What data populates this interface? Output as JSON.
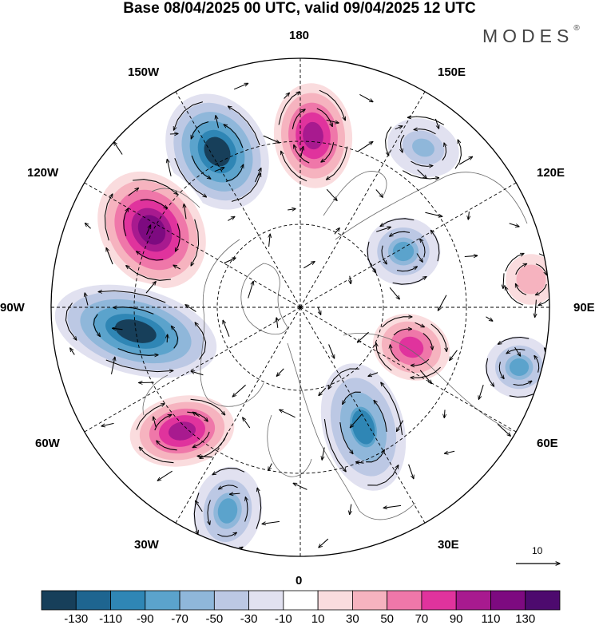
{
  "title": "Base 08/04/2025 00 UTC, valid 09/04/2025 12 UTC",
  "brand": {
    "name": "MODES",
    "mark": "®"
  },
  "longitude_labels": [
    {
      "id": "180",
      "text": "180"
    },
    {
      "id": "150E",
      "text": "150E"
    },
    {
      "id": "120E",
      "text": "120E"
    },
    {
      "id": "90E",
      "text": "90E"
    },
    {
      "id": "60E",
      "text": "60E"
    },
    {
      "id": "30E",
      "text": "30E"
    },
    {
      "id": "0",
      "text": "0"
    },
    {
      "id": "30W",
      "text": "30W"
    },
    {
      "id": "60W",
      "text": "60W"
    },
    {
      "id": "90W",
      "text": "90W"
    },
    {
      "id": "120W",
      "text": "120W"
    },
    {
      "id": "150W",
      "text": "150W"
    }
  ],
  "vector_reference": {
    "value": "10"
  },
  "colorbar": {
    "tick_labels": [
      "-130",
      "-110",
      "-90",
      "-70",
      "-50",
      "-30",
      "-10",
      "10",
      "30",
      "50",
      "70",
      "90",
      "110",
      "130"
    ],
    "colors": [
      "#173f5a",
      "#1e6590",
      "#2f86b5",
      "#5ba3cc",
      "#8fb7da",
      "#bcc8e4",
      "#e1e1f0",
      "#ffffff",
      "#fadcde",
      "#f6b3bf",
      "#ef77a9",
      "#e0339d",
      "#a81a8f",
      "#7d0a80",
      "#4d0a6e"
    ]
  },
  "field": {
    "anomalies": [
      {
        "name": "anticyclone-180",
        "value": 110
      },
      {
        "name": "cyclone-165W",
        "value": -130
      },
      {
        "name": "anticyclone-125W",
        "value": 130
      },
      {
        "name": "cyclone-80W",
        "value": -130
      },
      {
        "name": "anticyclone-55W",
        "value": 110
      },
      {
        "name": "cyclone-30W",
        "value": -70
      },
      {
        "name": "cyclone-15E",
        "value": -90
      },
      {
        "name": "anticyclone-80E",
        "value": 90
      },
      {
        "name": "cyclone-70E",
        "value": -70
      },
      {
        "name": "anticyclone-95E",
        "value": 50
      },
      {
        "name": "cyclone-140E",
        "value": -50
      },
      {
        "name": "cyclone-120E",
        "value": -70
      }
    ]
  }
}
